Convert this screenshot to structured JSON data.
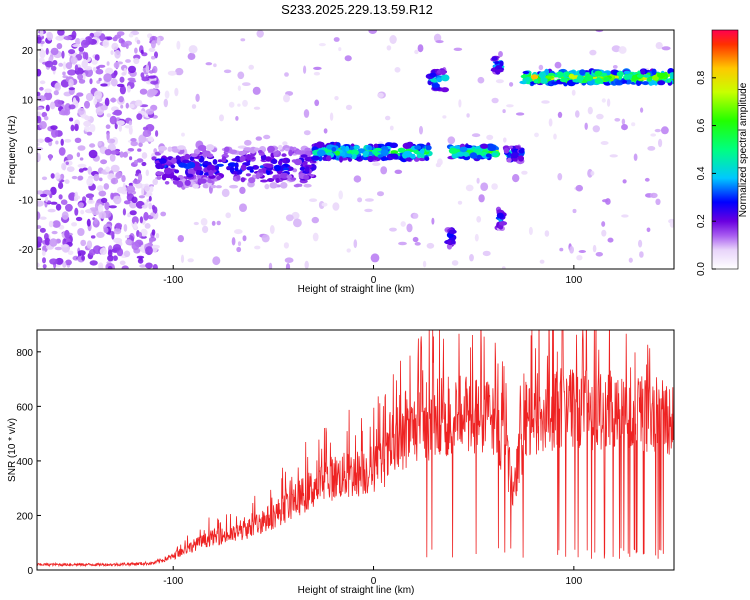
{
  "title": "S233.2025.229.13.59.R12",
  "chart_data": [
    {
      "type": "heatmap",
      "name": "spectrogram",
      "xlabel": "Height of straight line (km)",
      "ylabel": "Frequency (Hz)",
      "xlim": [
        -168,
        150
      ],
      "ylim": [
        -24,
        24
      ],
      "xticks": [
        -100,
        0,
        100
      ],
      "yticks": [
        20,
        10,
        0,
        -10,
        -20
      ],
      "colorbar": {
        "label": "Normalized spectral amplitude",
        "range": [
          0,
          1
        ],
        "ticks": [
          0.0,
          0.2,
          0.4,
          0.6,
          0.8
        ]
      },
      "ridge": [
        {
          "x_range": [
            -108,
            -30
          ],
          "freq": -3.5,
          "amplitude": 0.3,
          "spread": 4
        },
        {
          "x_range": [
            -30,
            28
          ],
          "freq": -0.5,
          "amplitude": 0.6,
          "spread": 1.5
        },
        {
          "x_range": [
            38,
            62
          ],
          "freq": -0.5,
          "amplitude": 0.7,
          "spread": 1.2
        },
        {
          "x_range": [
            66,
            74
          ],
          "freq": -1.0,
          "amplitude": 0.4,
          "spread": 1.5
        },
        {
          "x_range": [
            75,
            150
          ],
          "freq": 14.5,
          "amplitude": 0.8,
          "spread": 1.2
        },
        {
          "x_range": [
            28,
            36
          ],
          "freq": 14.0,
          "amplitude": 0.45,
          "spread": 2
        },
        {
          "x_range": [
            60,
            64
          ],
          "freq": 17.0,
          "amplitude": 0.45,
          "spread": 1.5
        },
        {
          "x_range": [
            37,
            40
          ],
          "freq": -17.5,
          "amplitude": 0.35,
          "spread": 2
        },
        {
          "x_range": [
            62,
            65
          ],
          "freq": -14.0,
          "amplitude": 0.35,
          "spread": 2
        }
      ]
    },
    {
      "type": "line",
      "name": "snr",
      "xlabel": "Height of straight line (km)",
      "ylabel": "SNR (10 * v/v)",
      "xlim": [
        -168,
        150
      ],
      "ylim": [
        0,
        880
      ],
      "xticks": [
        -100,
        0,
        100
      ],
      "yticks": [
        0,
        200,
        400,
        600,
        800
      ],
      "color": "#ee2222",
      "series": [
        {
          "name": "SNR",
          "x": [
            -168,
            -150,
            -130,
            -110,
            -100,
            -90,
            -80,
            -70,
            -60,
            -50,
            -40,
            -30,
            -20,
            -10,
            0,
            10,
            20,
            30,
            40,
            50,
            60,
            65,
            70,
            75,
            80,
            90,
            100,
            110,
            120,
            130,
            140,
            150
          ],
          "y": [
            20,
            20,
            20,
            25,
            50,
            90,
            120,
            130,
            160,
            200,
            250,
            300,
            340,
            350,
            370,
            430,
            520,
            540,
            550,
            570,
            560,
            450,
            300,
            500,
            560,
            580,
            600,
            580,
            570,
            570,
            570,
            560
          ]
        }
      ]
    }
  ]
}
